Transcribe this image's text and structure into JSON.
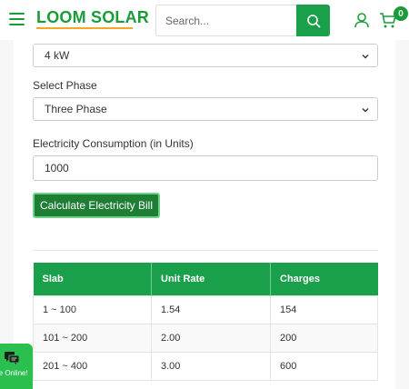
{
  "header": {
    "logo": "LOOM SOLAR",
    "search_placeholder": "Search...",
    "cart_count": "0"
  },
  "form": {
    "capacity_value": "4 kW",
    "phase_label": "Select Phase",
    "phase_value": "Three Phase",
    "consumption_label": "Electricity Consumption (in Units)",
    "consumption_value": "1000",
    "calculate_button": "Calculate Electricity Bill"
  },
  "table": {
    "headers": [
      "Slab",
      "Unit Rate",
      "Charges"
    ],
    "rows": [
      [
        "1 ~ 100",
        "1.54",
        "154"
      ],
      [
        "101 ~ 200",
        "2.00",
        "200"
      ],
      [
        "201 ~ 400",
        "3.00",
        "600"
      ]
    ]
  },
  "chat": {
    "status": "re Online!"
  },
  "colors": {
    "brand_green": "#1aa04a",
    "button_green": "#1e7e34",
    "logo_underline": "#f5a623"
  },
  "icons": {
    "menu": "hamburger-icon",
    "search": "search-icon",
    "user": "user-icon",
    "cart": "cart-icon",
    "chat": "chat-icon"
  }
}
